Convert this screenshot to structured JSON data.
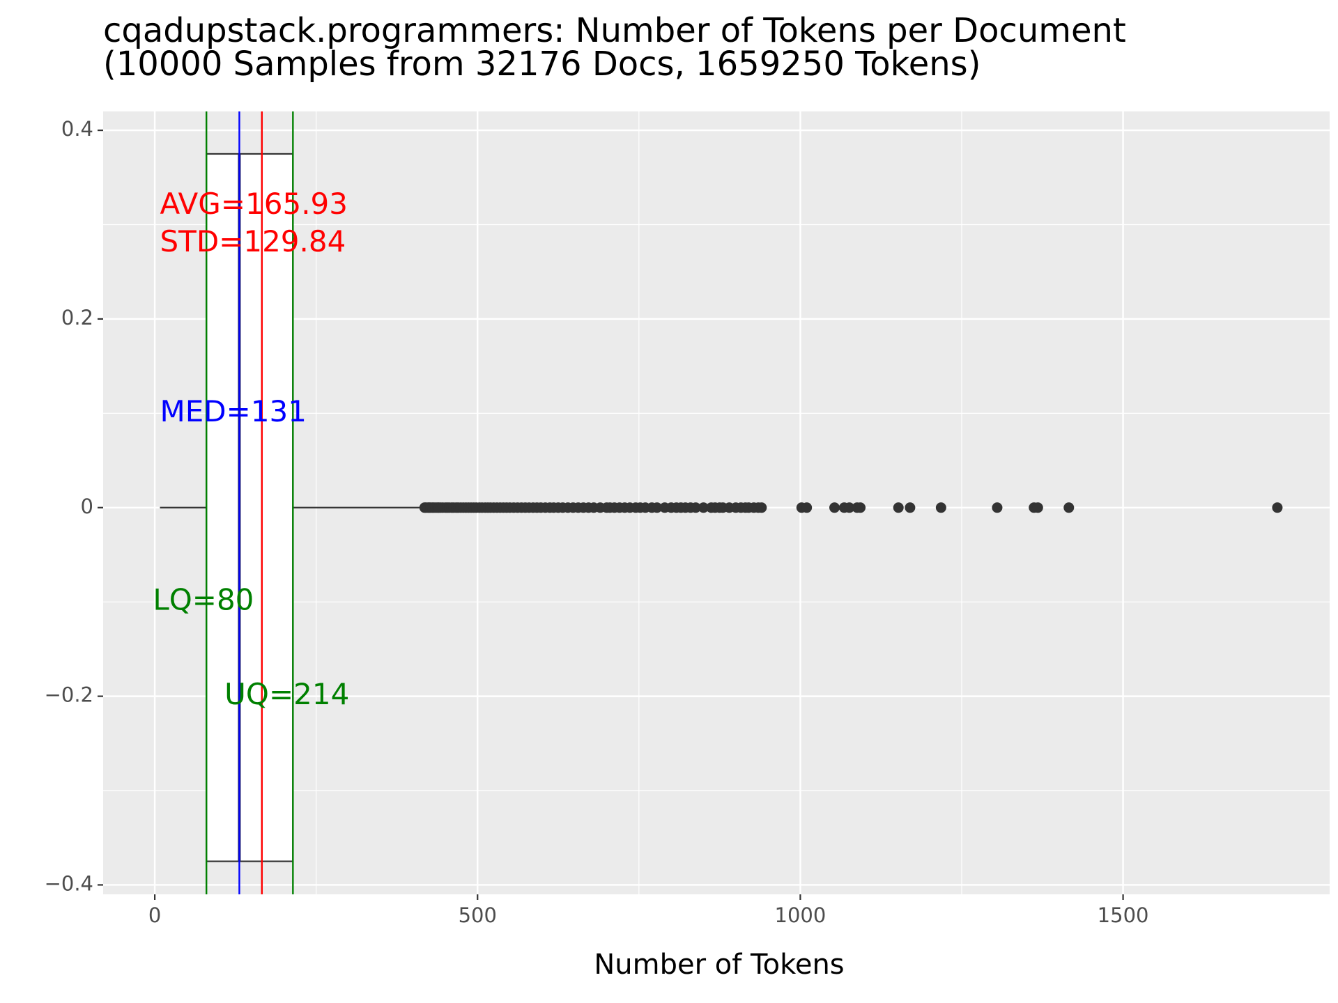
{
  "chart_data": {
    "type": "box",
    "title": "cqadupstack.programmers: Number of Tokens per Document",
    "subtitle": "(10000 Samples from 32176 Docs, 1659250 Tokens)",
    "xlabel": "Number of Tokens",
    "ylabel": "",
    "xlim": [
      -80,
      1820
    ],
    "ylim": [
      -0.41,
      0.42
    ],
    "x_ticks": [
      0,
      500,
      1000,
      1500
    ],
    "x_tick_labels": [
      "0",
      "500",
      "1000",
      "1500"
    ],
    "y_ticks": [
      -0.4,
      -0.2,
      0,
      0.2,
      0.4
    ],
    "y_tick_labels": [
      "−0.4",
      "−0.2",
      "0",
      "0.2",
      "0.4"
    ],
    "grid": true,
    "box": {
      "lower_whisker": 8,
      "q1": 80,
      "median": 131,
      "q3": 214,
      "upper_whisker": 415,
      "y_bottom": -0.375,
      "y_top": 0.375
    },
    "outliers": [
      418,
      420,
      423,
      425,
      427,
      430,
      432,
      435,
      438,
      440,
      443,
      446,
      450,
      453,
      456,
      460,
      463,
      467,
      470,
      474,
      478,
      482,
      486,
      490,
      494,
      498,
      503,
      507,
      512,
      516,
      520,
      525,
      530,
      535,
      540,
      545,
      550,
      556,
      562,
      568,
      574,
      580,
      586,
      592,
      598,
      605,
      612,
      618,
      625,
      632,
      640,
      648,
      656,
      664,
      672,
      680,
      690,
      700,
      705,
      712,
      720,
      728,
      736,
      745,
      752,
      760,
      770,
      778,
      790,
      800,
      808,
      815,
      822,
      830,
      838,
      850,
      862,
      868,
      875,
      880,
      890,
      900,
      908,
      915,
      920,
      928,
      935,
      940,
      1002,
      1010,
      1053,
      1068,
      1076,
      1088,
      1093,
      1152,
      1170,
      1218,
      1305,
      1362,
      1368,
      1416,
      1739
    ],
    "reference_lines": [
      {
        "name": "LQ",
        "x": 80,
        "color": "#008000"
      },
      {
        "name": "MED",
        "x": 131,
        "color": "#0000ff"
      },
      {
        "name": "AVG",
        "x": 165.93,
        "color": "#ff0000"
      },
      {
        "name": "UQ",
        "x": 214,
        "color": "#008000"
      }
    ],
    "annotations": [
      {
        "text": "AVG=165.93",
        "x": 8,
        "y": 0.32,
        "color": "#ff0000"
      },
      {
        "text": "STD=129.84",
        "x": 8,
        "y": 0.28,
        "color": "#ff0000"
      },
      {
        "text": "MED=131",
        "x": 8,
        "y": 0.1,
        "color": "#0000ff"
      },
      {
        "text": "LQ=80",
        "x": -3,
        "y": -0.1,
        "color": "#008000"
      },
      {
        "text": "UQ=214",
        "x": 108,
        "y": -0.2,
        "color": "#008000"
      }
    ],
    "colors": {
      "panel": "#ebebeb",
      "grid": "#ffffff",
      "box_fill": "#ffffff",
      "box_line": "#333333",
      "points": "#333333"
    }
  }
}
